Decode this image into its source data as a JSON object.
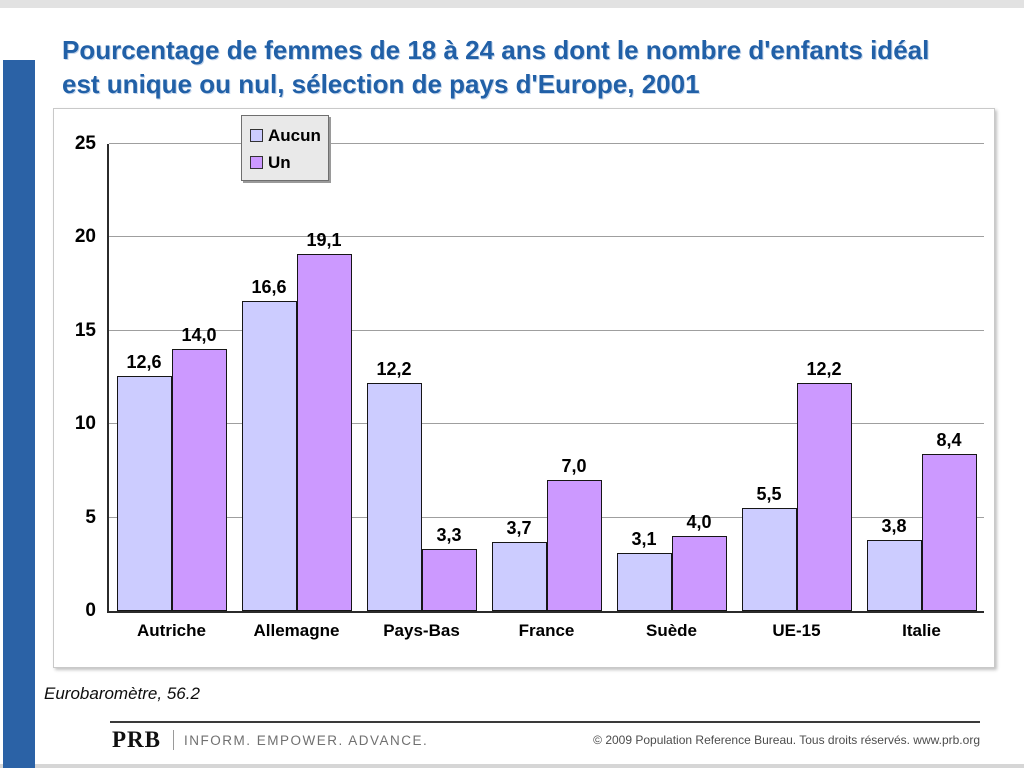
{
  "slide": {
    "title": "Pourcentage de femmes de 18 à 24 ans dont le nombre d'enfants idéal est unique ou nul, sélection de pays d'Europe, 2001",
    "source_note": "Eurobaromètre, 56.2",
    "footer": {
      "brand": "PRB",
      "tagline": "INFORM. EMPOWER. ADVANCE.",
      "copyright": "© 2009 Population Reference Bureau. Tous droits réservés. www.prb.org"
    }
  },
  "colors": {
    "title_blue": "#2160a7",
    "sidebar_blue": "#2b62a6",
    "aucun_fill": "#ccccff",
    "un_fill": "#cc99ff",
    "gridline_gray": "#9f9f9f"
  },
  "chart_data": {
    "type": "bar",
    "title": "",
    "xlabel": "",
    "ylabel": "",
    "categories": [
      "Autriche",
      "Allemagne",
      "Pays-Bas",
      "France",
      "Suède",
      "UE-15",
      "Italie"
    ],
    "series": [
      {
        "name": "Aucun",
        "color": "#ccccff",
        "values": [
          12.6,
          16.6,
          12.2,
          3.7,
          3.1,
          5.5,
          3.8
        ]
      },
      {
        "name": "Un",
        "color": "#cc99ff",
        "values": [
          14.0,
          19.1,
          3.3,
          7.0,
          4.0,
          12.2,
          8.4
        ]
      }
    ],
    "ylim": [
      0,
      25
    ],
    "yticks": [
      0,
      5,
      10,
      15,
      20,
      25
    ],
    "grid": true,
    "legend_position": "top-inside-left",
    "value_labels_shown": true,
    "value_label_decimal_separator": ","
  }
}
